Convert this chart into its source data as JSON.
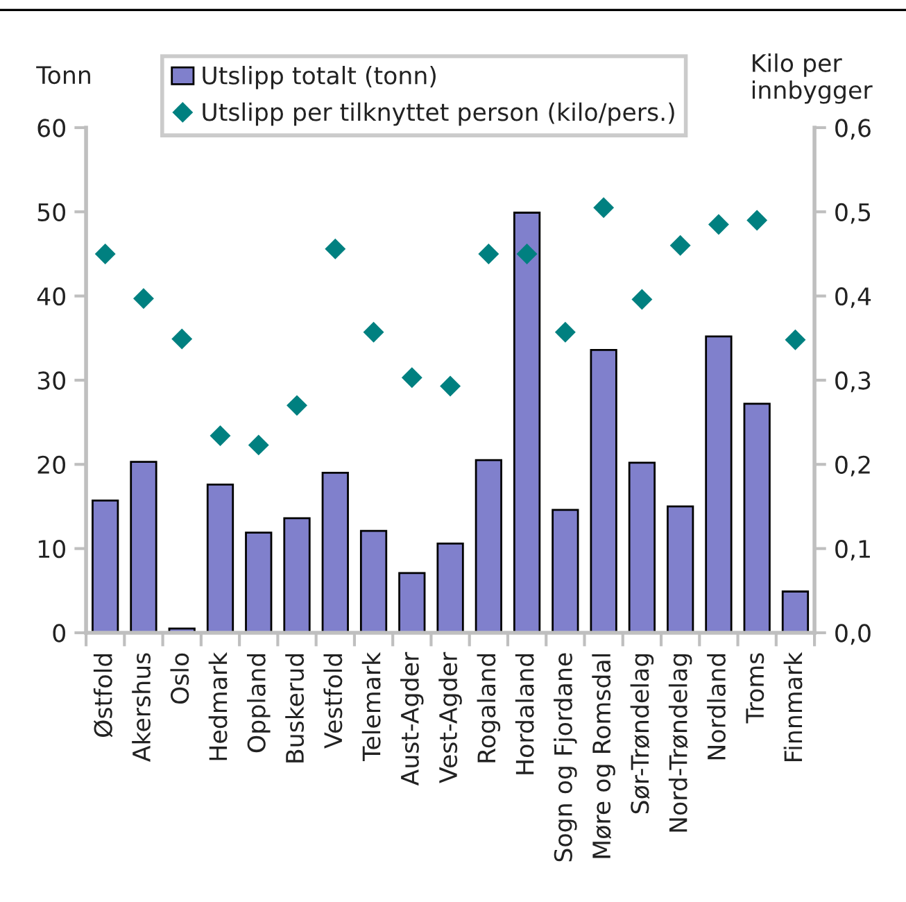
{
  "chart_data": {
    "type": "bar",
    "categories": [
      "Østfold",
      "Akershus",
      "Oslo",
      "Hedmark",
      "Oppland",
      "Buskerud",
      "Vestfold",
      "Telemark",
      "Aust-Agder",
      "Vest-Agder",
      "Rogaland",
      "Hordaland",
      "Sogn og Fjordane",
      "Møre og Romsdal",
      "Sør-Trøndelag",
      "Nord-Trøndelag",
      "Nordland",
      "Troms",
      "Finnmark"
    ],
    "ylabel": "Tonn",
    "y2label": "Kilo per\ninnbygger",
    "ylim": [
      0,
      60
    ],
    "yticks": [
      0,
      10,
      20,
      30,
      40,
      50,
      60
    ],
    "y2lim": [
      0,
      0.6
    ],
    "y2ticks": [
      {
        "value": 0,
        "label": "0,0"
      },
      {
        "value": 0.1,
        "label": "0,1"
      },
      {
        "value": 0.2,
        "label": "0,2"
      },
      {
        "value": 0.3,
        "label": "0,3"
      },
      {
        "value": 0.4,
        "label": "0,4"
      },
      {
        "value": 0.5,
        "label": "0,5"
      },
      {
        "value": 0.6,
        "label": "0,6"
      }
    ],
    "legend": "top",
    "grid": false,
    "series": [
      {
        "name": "Utslipp totalt (tonn)",
        "color": "#8080cc",
        "values": [
          15.7,
          20.3,
          0.5,
          17.6,
          11.9,
          13.6,
          19.0,
          12.1,
          7.1,
          10.6,
          20.5,
          49.9,
          14.6,
          33.6,
          20.2,
          15.0,
          35.2,
          27.2,
          4.9
        ]
      },
      {
        "name": "Utslipp per tilknyttet person (kilo/pers.)",
        "type": "scatter",
        "axis": "y2",
        "marker": "diamond",
        "color": "#008080",
        "values": [
          0.45,
          0.397,
          0.349,
          0.234,
          0.223,
          0.27,
          0.456,
          0.357,
          0.303,
          0.293,
          0.45,
          0.45,
          0.357,
          0.505,
          0.396,
          0.46,
          0.485,
          0.49,
          0.348
        ]
      }
    ]
  }
}
